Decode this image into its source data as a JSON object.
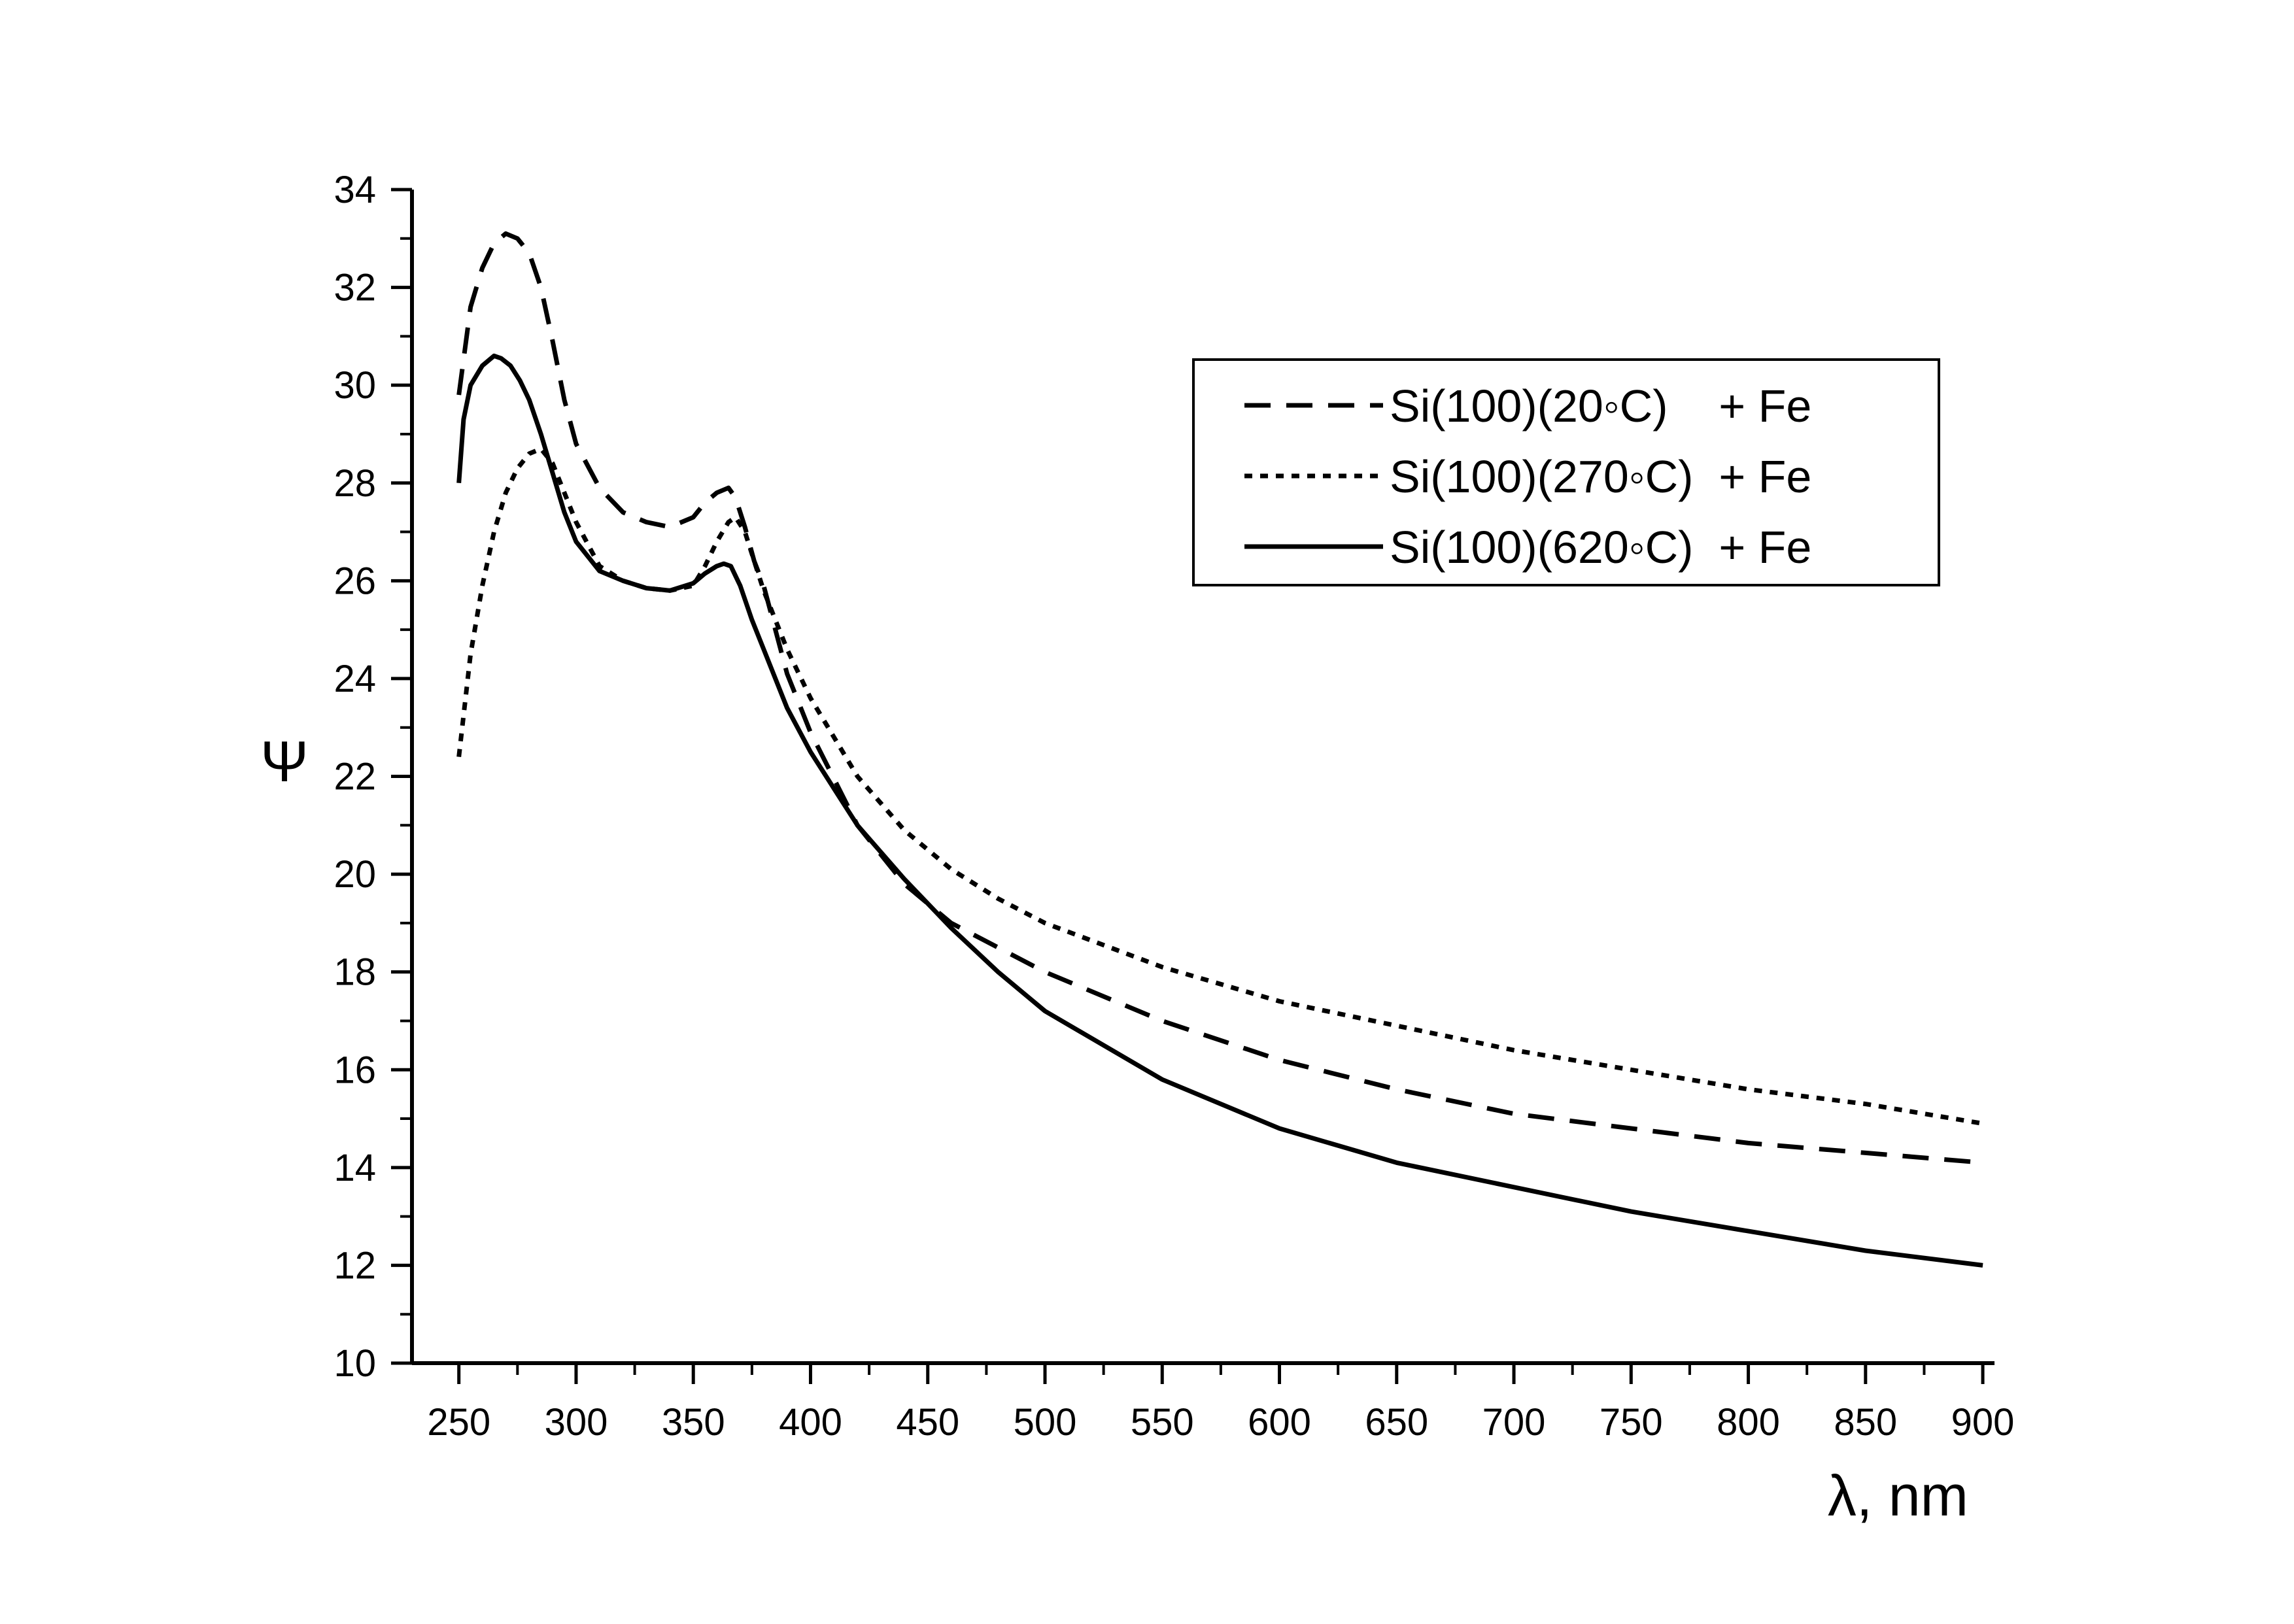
{
  "chart_data": {
    "type": "line",
    "title": "",
    "xlabel": "λ, nm",
    "ylabel": "Ψ",
    "xlim": [
      230,
      905
    ],
    "ylim": [
      10,
      34
    ],
    "x_ticks": [
      250,
      300,
      350,
      400,
      450,
      500,
      550,
      600,
      650,
      700,
      750,
      800,
      850,
      900
    ],
    "y_ticks": [
      10,
      12,
      14,
      16,
      18,
      20,
      22,
      24,
      26,
      28,
      30,
      32,
      34
    ],
    "grid": false,
    "legend_position": "top-right",
    "series": [
      {
        "name": "Si(100)(20◦C)    + Fe",
        "style": "dashed",
        "color": "#000000",
        "x": [
          250,
          255,
          260,
          265,
          270,
          275,
          280,
          285,
          290,
          295,
          300,
          310,
          320,
          330,
          340,
          350,
          355,
          360,
          365,
          368,
          372,
          376,
          380,
          390,
          400,
          420,
          440,
          460,
          480,
          500,
          550,
          600,
          650,
          700,
          750,
          800,
          850,
          900
        ],
        "values": [
          29.8,
          31.6,
          32.4,
          32.9,
          33.1,
          33.0,
          32.7,
          32.0,
          30.9,
          29.7,
          28.8,
          27.9,
          27.4,
          27.2,
          27.1,
          27.3,
          27.6,
          27.8,
          27.9,
          27.7,
          27.1,
          26.4,
          25.9,
          24.1,
          22.9,
          21.0,
          19.8,
          19.0,
          18.5,
          18.0,
          17.0,
          16.2,
          15.6,
          15.1,
          14.8,
          14.5,
          14.3,
          14.1
        ]
      },
      {
        "name": "Si(100)(270◦C)  + Fe",
        "style": "dotted",
        "color": "#000000",
        "x": [
          250,
          255,
          260,
          265,
          270,
          275,
          280,
          285,
          290,
          300,
          310,
          320,
          330,
          340,
          350,
          355,
          360,
          365,
          368,
          372,
          376,
          380,
          390,
          400,
          420,
          440,
          460,
          480,
          500,
          550,
          600,
          650,
          700,
          750,
          800,
          850,
          900
        ],
        "values": [
          22.4,
          24.5,
          25.9,
          27.0,
          27.8,
          28.3,
          28.6,
          28.7,
          28.4,
          27.2,
          26.3,
          26.0,
          25.85,
          25.8,
          25.9,
          26.3,
          26.8,
          27.2,
          27.3,
          27.0,
          26.4,
          25.8,
          24.6,
          23.6,
          22.0,
          20.9,
          20.1,
          19.5,
          19.0,
          18.1,
          17.4,
          16.9,
          16.4,
          16.0,
          15.6,
          15.3,
          14.9
        ]
      },
      {
        "name": "Si(100)(620◦C)  + Fe",
        "style": "solid",
        "color": "#000000",
        "x": [
          250,
          252,
          255,
          260,
          265,
          268,
          272,
          276,
          280,
          285,
          290,
          295,
          300,
          310,
          320,
          330,
          340,
          350,
          355,
          360,
          363,
          366,
          370,
          375,
          380,
          390,
          400,
          420,
          440,
          460,
          480,
          500,
          550,
          600,
          650,
          700,
          750,
          800,
          850,
          900
        ],
        "values": [
          28.0,
          29.3,
          30.0,
          30.4,
          30.6,
          30.55,
          30.4,
          30.1,
          29.7,
          29.0,
          28.2,
          27.4,
          26.8,
          26.2,
          26.0,
          25.85,
          25.8,
          25.95,
          26.15,
          26.3,
          26.35,
          26.3,
          25.9,
          25.2,
          24.6,
          23.4,
          22.5,
          21.0,
          19.9,
          18.9,
          18.0,
          17.2,
          15.8,
          14.8,
          14.1,
          13.6,
          13.1,
          12.7,
          12.3,
          12.0
        ]
      }
    ]
  }
}
